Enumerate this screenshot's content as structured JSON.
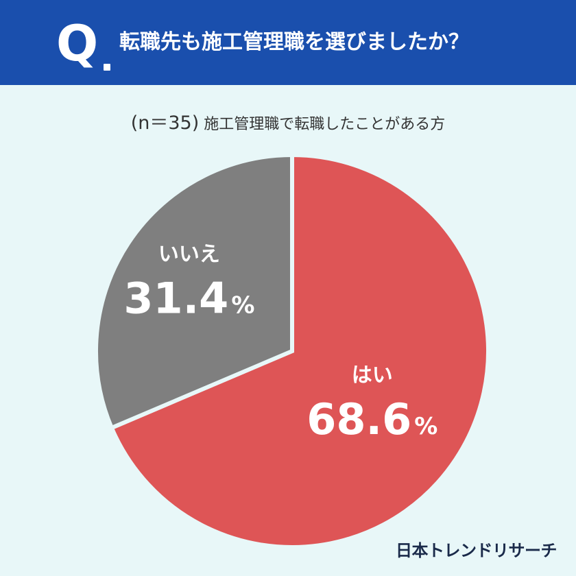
{
  "header": {
    "q_mark": "Q",
    "question": "転職先も施工管理職を選びましたか？"
  },
  "subtitle": {
    "n_label": "(n＝35)",
    "text": "施工管理職で転職したことがある方"
  },
  "colors": {
    "header_bg": "#1a4fad",
    "background": "#e8f7f8",
    "yes": "#de5556",
    "no": "#7f7f7f"
  },
  "brand": "日本トレンドリサーチ",
  "chart_data": {
    "type": "pie",
    "categories": [
      "はい",
      "いいえ"
    ],
    "values": [
      68.6,
      31.4
    ],
    "value_labels": [
      "68.6",
      "31.4"
    ],
    "unit": "%"
  }
}
